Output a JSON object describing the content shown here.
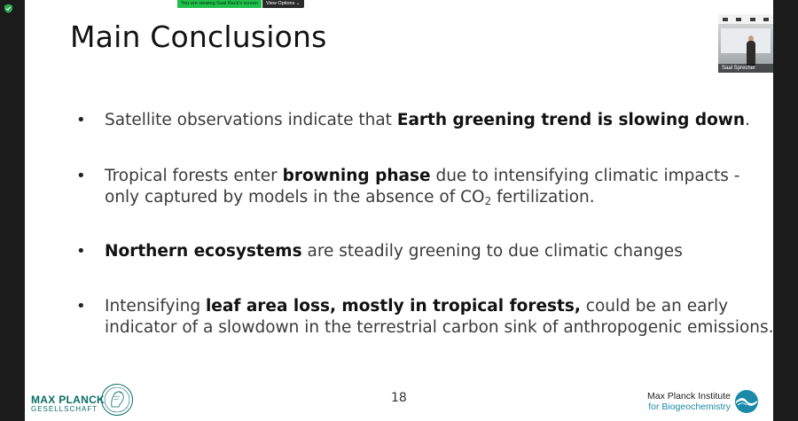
{
  "share_bar": {
    "viewing_text": "You are viewing Saal Rack's screen",
    "options_label": "View Options"
  },
  "slide": {
    "title": "Main Conclusions",
    "bullets": [
      {
        "pre": "Satellite observations indicate that ",
        "bold": "Earth greening trend is slowing down",
        "post": "."
      },
      {
        "pre": "Tropical forests enter ",
        "bold": "browning phase",
        "post": " due to intensifying climatic impacts - only captured by models in the absence of CO",
        "sub": "2",
        "post2": " fertilization."
      },
      {
        "pre": "",
        "bold": "Northern ecosystems",
        "post": " are steadily greening to due climatic changes"
      },
      {
        "pre": "Intensifying ",
        "bold": "leaf area loss, mostly in tropical forests,",
        "post": " could be an early indicator of a slowdown in the terrestrial carbon sink of anthropogenic emissions."
      }
    ],
    "page_number": "18",
    "footer_left": {
      "name": "MAX PLANCK",
      "sub": "GESELLSCHAFT"
    },
    "footer_right": {
      "line1": "Max Planck Institute",
      "line2": "for Biogeochemistry"
    }
  },
  "video_thumbnail": {
    "participant_name": "Saal Sprecher"
  },
  "colors": {
    "mpg_green": "#0a6e66",
    "mpi_blue": "#1a8aa8",
    "share_green": "#20c14a"
  },
  "icons": {
    "security": "shield-icon",
    "chevron": "chevron-down-icon"
  }
}
